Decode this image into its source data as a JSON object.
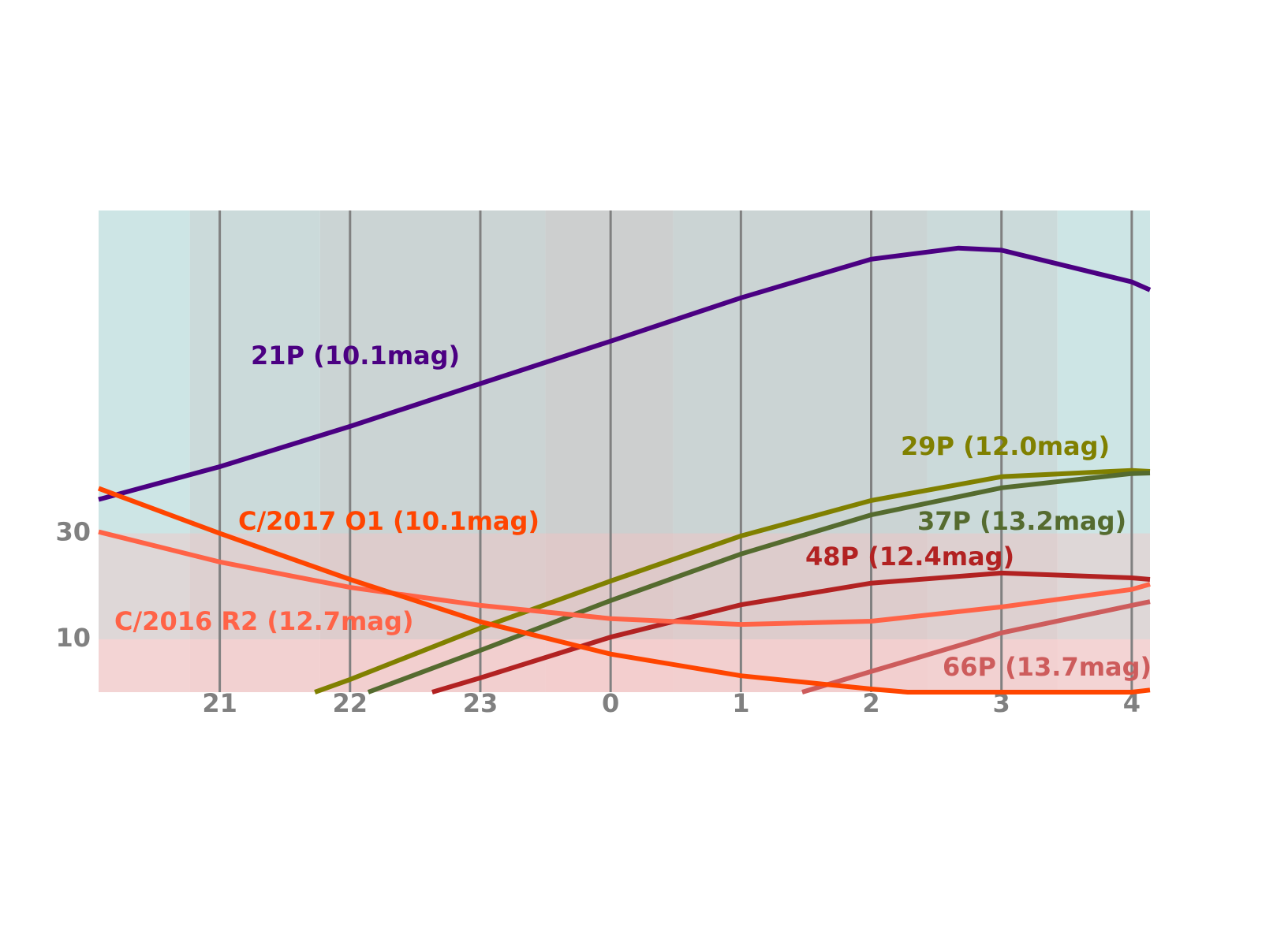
{
  "chart_data": {
    "type": "line",
    "xlim": [
      -3.93,
      4.14
    ],
    "ylim": [
      0,
      91
    ],
    "xticks": [
      {
        "value": -3,
        "label": "21"
      },
      {
        "value": -2,
        "label": "22"
      },
      {
        "value": -1,
        "label": "23"
      },
      0,
      1,
      2,
      3,
      4
    ],
    "yticks": [
      10,
      30
    ],
    "grid": true,
    "shading": [
      {
        "x": [
          -3.93,
          -3.23
        ],
        "color": "#cde5e5"
      },
      {
        "x": [
          -3.23,
          -2.23
        ],
        "color": "#cbdada"
      },
      {
        "x": [
          -2.23,
          -0.5
        ],
        "color": "#cbd4d4"
      },
      {
        "x": [
          -0.5,
          0.48
        ],
        "color": "#cdcfcf"
      },
      {
        "x": [
          0.48,
          2.43
        ],
        "color": "#cbd4d4"
      },
      {
        "x": [
          2.43,
          3.43
        ],
        "color": "#cbdada"
      },
      {
        "x": [
          3.43,
          4.14
        ],
        "color": "#cde5e5"
      }
    ],
    "zones": [
      {
        "y": [
          10,
          30
        ],
        "color": "rgba(255,190,190,0.35)"
      },
      {
        "y": [
          0,
          10
        ],
        "color": "rgba(255,205,205,0.75)"
      }
    ],
    "series": [
      {
        "name": "21P (10.1mag)",
        "color": "#4b0082",
        "x": [
          -3.93,
          -3,
          -2,
          -1,
          0,
          1,
          2,
          2.67,
          3,
          4,
          4.14
        ],
        "values": [
          36.4,
          42.6,
          50.2,
          58.3,
          66.3,
          74.5,
          81.8,
          83.9,
          83.5,
          77.5,
          76.0
        ]
      },
      {
        "name": "29P (12.0mag)",
        "color": "#808000",
        "x": [
          -2.27,
          -2,
          -1,
          0,
          1,
          2,
          3,
          4,
          4.14
        ],
        "values": [
          0,
          2.4,
          12.1,
          21.0,
          29.5,
          36.2,
          40.7,
          41.9,
          41.7
        ]
      },
      {
        "name": "37P (13.2mag)",
        "color": "#556b2f",
        "x": [
          -1.86,
          -1,
          0,
          1,
          2,
          3,
          4,
          4.14
        ],
        "values": [
          0,
          7.9,
          17.3,
          26.1,
          33.5,
          38.6,
          41.3,
          41.4
        ]
      },
      {
        "name": "48P (12.4mag)",
        "color": "#b22222",
        "x": [
          -1.37,
          -1,
          0,
          1,
          2,
          3,
          4,
          4.14
        ],
        "values": [
          0,
          2.7,
          10.4,
          16.5,
          20.6,
          22.5,
          21.6,
          21.3
        ]
      },
      {
        "name": "66P (13.7mag)",
        "color": "#cd5c5c",
        "x": [
          1.47,
          2,
          3,
          4,
          4.14
        ],
        "values": [
          0,
          3.9,
          11.2,
          16.4,
          17.1
        ]
      },
      {
        "name": "C/2016 R2 (12.7mag)",
        "color": "#ff6347",
        "x": [
          -3.93,
          -3,
          -2,
          -1,
          0,
          1,
          2,
          3,
          4,
          4.14
        ],
        "values": [
          30.3,
          24.6,
          19.8,
          16.4,
          13.9,
          12.8,
          13.4,
          16.1,
          19.4,
          20.4
        ]
      },
      {
        "name": "C/2017 O1 (10.1mag)",
        "color": "#ff4500",
        "x": [
          -3.93,
          -3,
          -2,
          -1,
          0,
          1,
          2,
          2.28,
          4,
          4.14
        ],
        "values": [
          38.5,
          30.0,
          21.3,
          13.3,
          7.2,
          3.1,
          0.6,
          0,
          0,
          0.4
        ]
      }
    ]
  }
}
